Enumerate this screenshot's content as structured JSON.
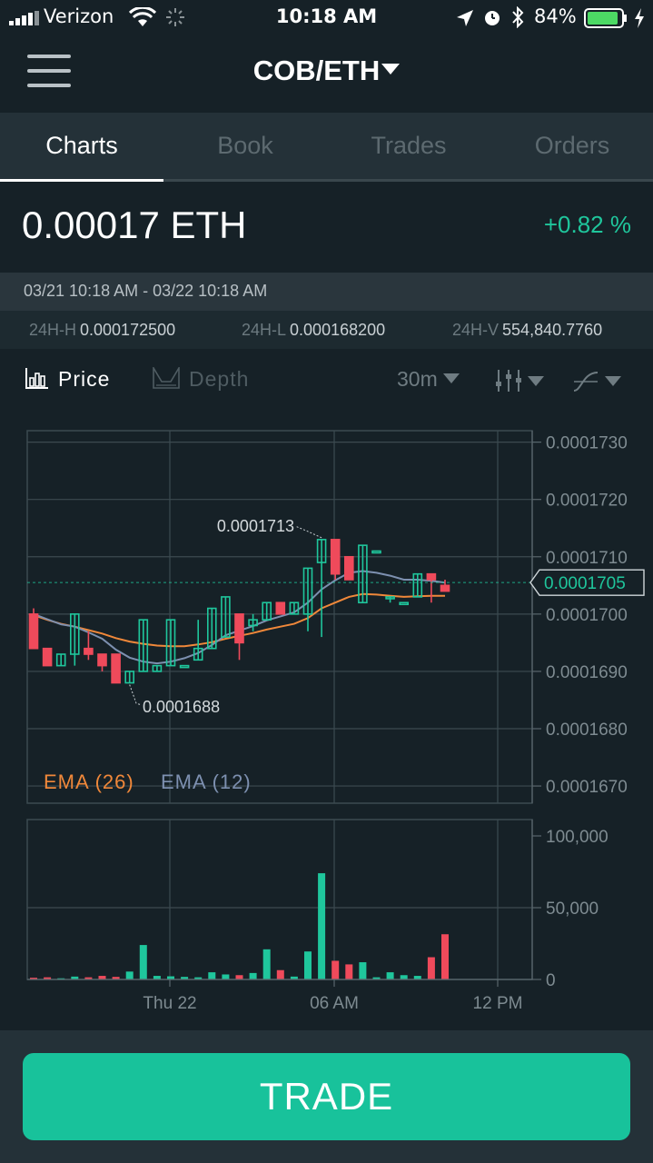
{
  "status_bar": {
    "carrier": "Verizon",
    "time": "10:18 AM",
    "battery": "84%"
  },
  "header": {
    "pair": "COB/ETH"
  },
  "tabs": [
    {
      "label": "Charts",
      "active": true
    },
    {
      "label": "Book",
      "active": false
    },
    {
      "label": "Trades",
      "active": false
    },
    {
      "label": "Orders",
      "active": false
    }
  ],
  "ticker": {
    "last_price": "0.00017 ETH",
    "change": "+0.82 %",
    "range": "03/21 10:18 AM - 03/22 10:18 AM",
    "high_label": "24H-H",
    "high": "0.000172500",
    "low_label": "24H-L",
    "low": "0.000168200",
    "volume_label": "24H-V",
    "volume": "554,840.7760"
  },
  "toolbar": {
    "price": "Price",
    "depth": "Depth",
    "interval": "30m"
  },
  "colors": {
    "up": "#1fc69c",
    "down": "#ef4a5b",
    "ema26": "#f0883a",
    "ema12": "#7d90b0",
    "accent": "#18c29b"
  },
  "chart_data": {
    "type": "candlestick",
    "price_ticks": [
      "0.0001730",
      "0.0001720",
      "0.0001710",
      "0.0001700",
      "0.0001690",
      "0.0001680",
      "0.0001670"
    ],
    "price_range": [
      0.0001667,
      0.0001732
    ],
    "current_price_label": "0.0001705",
    "current_price": 0.00017055,
    "high_label": "0.0001713",
    "low_label": "0.0001688",
    "legend": [
      "EMA (26)",
      "EMA (12)"
    ],
    "volume_ticks": [
      "100,000",
      "50,000",
      "0"
    ],
    "volume_range": [
      0,
      100000
    ],
    "time_ticks": [
      "Thu 22",
      "06 AM",
      "12 PM"
    ],
    "candles": [
      {
        "o": 0.00017,
        "h": 0.0001701,
        "l": 0.0001694,
        "c": 0.0001694
      },
      {
        "o": 0.0001694,
        "h": 0.0001694,
        "l": 0.0001691,
        "c": 0.0001691
      },
      {
        "o": 0.0001691,
        "h": 0.0001693,
        "l": 0.0001691,
        "c": 0.0001693
      },
      {
        "o": 0.0001693,
        "h": 0.00017,
        "l": 0.0001691,
        "c": 0.00017
      },
      {
        "o": 0.0001694,
        "h": 0.0001697,
        "l": 0.0001692,
        "c": 0.0001693
      },
      {
        "o": 0.0001693,
        "h": 0.0001693,
        "l": 0.000169,
        "c": 0.0001691
      },
      {
        "o": 0.0001693,
        "h": 0.0001693,
        "l": 0.0001688,
        "c": 0.0001688
      },
      {
        "o": 0.0001688,
        "h": 0.000169,
        "l": 0.0001688,
        "c": 0.000169
      },
      {
        "o": 0.000169,
        "h": 0.0001699,
        "l": 0.000169,
        "c": 0.0001699
      },
      {
        "o": 0.000169,
        "h": 0.0001691,
        "l": 0.000169,
        "c": 0.0001691
      },
      {
        "o": 0.0001691,
        "h": 0.0001699,
        "l": 0.0001691,
        "c": 0.0001699
      },
      {
        "o": 0.0001691,
        "h": 0.0001691,
        "l": 0.0001691,
        "c": 0.0001691
      },
      {
        "o": 0.0001692,
        "h": 0.0001699,
        "l": 0.0001692,
        "c": 0.0001694
      },
      {
        "o": 0.0001694,
        "h": 0.0001701,
        "l": 0.0001694,
        "c": 0.0001701
      },
      {
        "o": 0.0001696,
        "h": 0.0001703,
        "l": 0.0001696,
        "c": 0.0001703
      },
      {
        "o": 0.00017,
        "h": 0.00017,
        "l": 0.0001692,
        "c": 0.0001695
      },
      {
        "o": 0.0001698,
        "h": 0.00017,
        "l": 0.0001697,
        "c": 0.0001699
      },
      {
        "o": 0.0001699,
        "h": 0.0001702,
        "l": 0.0001699,
        "c": 0.0001702
      },
      {
        "o": 0.0001702,
        "h": 0.0001702,
        "l": 0.00017,
        "c": 0.00017
      },
      {
        "o": 0.00017,
        "h": 0.0001702,
        "l": 0.00017,
        "c": 0.0001702
      },
      {
        "o": 0.00017,
        "h": 0.0001708,
        "l": 0.0001697,
        "c": 0.0001708
      },
      {
        "o": 0.0001709,
        "h": 0.0001713,
        "l": 0.0001696,
        "c": 0.0001713
      },
      {
        "o": 0.0001713,
        "h": 0.0001713,
        "l": 0.0001706,
        "c": 0.0001707
      },
      {
        "o": 0.000171,
        "h": 0.000171,
        "l": 0.0001706,
        "c": 0.0001706
      },
      {
        "o": 0.0001702,
        "h": 0.0001712,
        "l": 0.0001702,
        "c": 0.0001712
      },
      {
        "o": 0.0001711,
        "h": 0.0001711,
        "l": 0.0001711,
        "c": 0.0001711
      },
      {
        "o": 0.0001703,
        "h": 0.0001703,
        "l": 0.0001702,
        "c": 0.0001703
      },
      {
        "o": 0.0001702,
        "h": 0.0001702,
        "l": 0.0001702,
        "c": 0.0001702
      },
      {
        "o": 0.0001703,
        "h": 0.0001707,
        "l": 0.0001703,
        "c": 0.0001707
      },
      {
        "o": 0.0001707,
        "h": 0.0001707,
        "l": 0.0001702,
        "c": 0.0001706
      },
      {
        "o": 0.0001705,
        "h": 0.0001706,
        "l": 0.0001704,
        "c": 0.0001704
      }
    ],
    "volumes": [
      1200,
      1500,
      800,
      2000,
      1500,
      2500,
      1800,
      5500,
      24000,
      2500,
      2200,
      1800,
      1500,
      5000,
      3500,
      3000,
      4500,
      21000,
      6500,
      2000,
      19500,
      74000,
      13000,
      10500,
      12000,
      1500,
      5000,
      3000,
      2500,
      15500,
      31500
    ],
    "ema12": [
      0.00017,
      0.00016991,
      0.00016982,
      0.00016978,
      0.00016968,
      0.00016957,
      0.00016938,
      0.00016924,
      0.00016917,
      0.00016914,
      0.00016917,
      0.00016923,
      0.00016932,
      0.00016946,
      0.00016963,
      0.00016971,
      0.00016979,
      0.00016989,
      0.00016996,
      0.00017003,
      0.0001702,
      0.00017043,
      0.00017059,
      0.00017072,
      0.00017075,
      0.00017072,
      0.00017067,
      0.0001706,
      0.0001706,
      0.00017058,
      0.00017055
    ],
    "ema26": [
      0.00016998,
      0.0001699,
      0.00016983,
      0.00016978,
      0.00016972,
      0.00016966,
      0.00016958,
      0.00016952,
      0.00016948,
      0.00016945,
      0.00016944,
      0.00016944,
      0.00016947,
      0.00016951,
      0.00016957,
      0.00016962,
      0.00016967,
      0.00016973,
      0.00016978,
      0.00016983,
      0.00016993,
      0.0001701,
      0.0001702,
      0.0001703,
      0.00017035,
      0.00017034,
      0.00017032,
      0.0001703,
      0.00017031,
      0.00017032,
      0.00017032
    ]
  }
}
